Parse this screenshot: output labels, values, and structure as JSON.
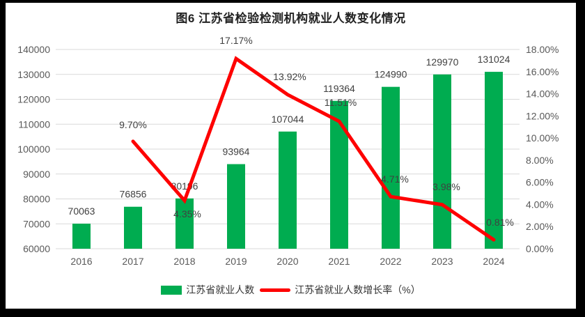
{
  "title": "图6  江苏省检验检测机构就业人数变化情况",
  "legend": {
    "bar_label": "江苏省就业人数",
    "line_label": "江苏省就业人数增长率（%）"
  },
  "colors": {
    "bar": "#00AC50",
    "line": "#FE0000",
    "grid": "#D9D9D9",
    "tick_text": "#595959",
    "label_text": "#404040",
    "frame": "#000000",
    "background": "#FFFFFF"
  },
  "chart_data": {
    "type": "combo",
    "title": "图6  江苏省检验检测机构就业人数变化情况",
    "xlabel": "",
    "ylabel_left": "",
    "ylabel_right": "",
    "grid": true,
    "legend_position": "bottom",
    "categories": [
      "2016",
      "2017",
      "2018",
      "2019",
      "2020",
      "2021",
      "2022",
      "2023",
      "2024"
    ],
    "series": [
      {
        "name": "江苏省就业人数",
        "type": "bar",
        "axis": "left",
        "values": [
          70063,
          76856,
          80196,
          93964,
          107044,
          119364,
          124990,
          129970,
          131024
        ],
        "labels": [
          "70063",
          "76856",
          "80196",
          "93964",
          "107044",
          "119364",
          "124990",
          "129970",
          "131024"
        ]
      },
      {
        "name": "江苏省就业人数增长率（%）",
        "type": "line",
        "axis": "right",
        "values": [
          null,
          9.7,
          4.35,
          17.17,
          13.92,
          11.51,
          4.71,
          3.98,
          0.81
        ],
        "labels": [
          "",
          "9.70%",
          "4.35%",
          "17.17%",
          "13.92%",
          "11.51%",
          "4.71%",
          "3.98%",
          "0.81%"
        ],
        "label_offsets": [
          [
            0,
            0
          ],
          [
            0,
            -19
          ],
          [
            4,
            24
          ],
          [
            0,
            -21
          ],
          [
            3,
            -21
          ],
          [
            2,
            -22
          ],
          [
            6,
            -20
          ],
          [
            6,
            -21
          ],
          [
            9,
            -20
          ]
        ]
      }
    ],
    "left_axis": {
      "min": 60000,
      "max": 140000,
      "step": 10000,
      "ticks": [
        "60000",
        "70000",
        "80000",
        "90000",
        "100000",
        "110000",
        "120000",
        "130000",
        "140000"
      ]
    },
    "right_axis": {
      "min": 0,
      "max": 18,
      "step": 2,
      "ticks": [
        "0.00%",
        "2.00%",
        "4.00%",
        "6.00%",
        "8.00%",
        "10.00%",
        "12.00%",
        "14.00%",
        "16.00%",
        "18.00%"
      ]
    }
  }
}
